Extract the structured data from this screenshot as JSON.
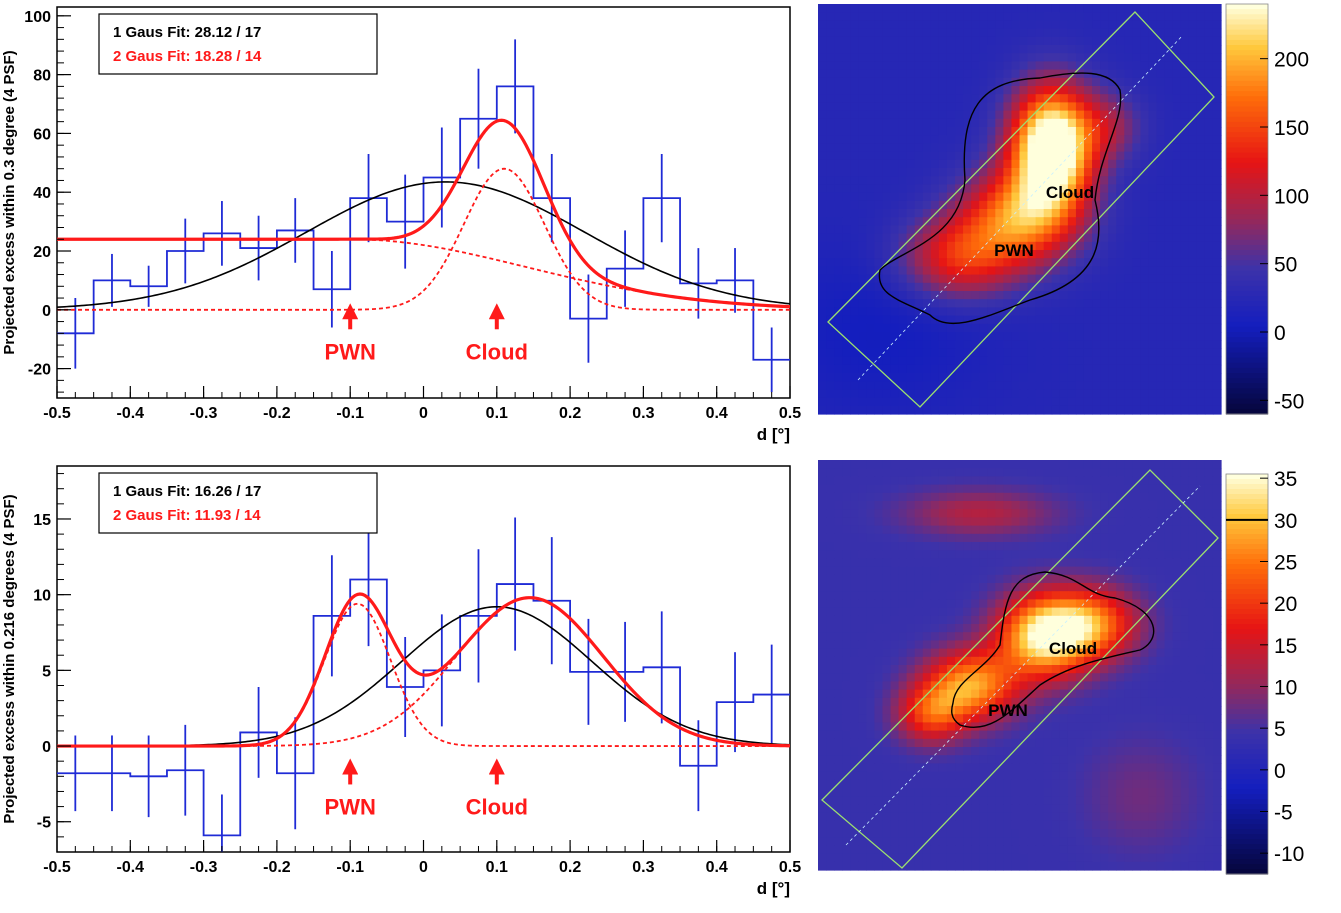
{
  "colors": {
    "data": "#1f2bd6",
    "one_gaus": "#000000",
    "two_gaus": "#ff1a1a",
    "frame": "#000000",
    "box": "#9ce070"
  },
  "chart_data": [
    {
      "type": "line",
      "panel": "top-left",
      "xlabel": "d [°]",
      "ylabel": "Projected excess within 0.3 degree (4 PSF)",
      "xlim": [
        -0.5,
        0.5
      ],
      "ylim": [
        -30,
        103
      ],
      "xticks": [
        -0.5,
        -0.4,
        -0.3,
        -0.2,
        -0.1,
        0,
        0.1,
        0.2,
        0.3,
        0.4,
        0.5
      ],
      "yticks": [
        -20,
        0,
        20,
        40,
        60,
        80,
        100
      ],
      "legend": {
        "placement": "top-left",
        "entries": [
          {
            "text": "1 Gaus Fit: 28.12 / 17",
            "color": "#000000"
          },
          {
            "text": "2 Gaus Fit: 18.28 / 14",
            "color": "#ff1a1a"
          }
        ]
      },
      "annotations": [
        {
          "text": "PWN",
          "x": -0.1,
          "color": "#ff1a1a"
        },
        {
          "text": "Cloud",
          "x": 0.1,
          "color": "#ff1a1a"
        }
      ],
      "histogram": {
        "name": "data",
        "bin_edges": [
          -0.5,
          -0.45,
          -0.4,
          -0.35,
          -0.3,
          -0.25,
          -0.2,
          -0.15,
          -0.1,
          -0.05,
          0,
          0.05,
          0.1,
          0.15,
          0.2,
          0.25,
          0.3,
          0.35,
          0.4,
          0.45,
          0.5
        ],
        "values": [
          -8,
          10,
          8,
          20,
          26,
          21,
          27,
          7,
          38,
          30,
          45,
          65,
          76,
          38,
          -3,
          14,
          38,
          9,
          10,
          -17
        ],
        "errors": [
          12,
          9,
          7,
          11,
          11,
          11,
          11,
          13,
          15,
          16,
          17,
          17,
          16,
          15,
          15,
          13,
          15,
          12,
          11,
          11
        ]
      },
      "series": [
        {
          "name": "1 Gaus Fit",
          "kind": "gauss1",
          "amp": 43.5,
          "mu": 0.03,
          "sigma": 0.19
        },
        {
          "name": "2 Gaus Fit",
          "kind": "gauss2",
          "g1": {
            "amp": 24,
            "mu": -0.1,
            "sigma": 0.24,
            "halfRight": true
          },
          "g2": {
            "amp": 48,
            "mu": 0.11,
            "sigma": 0.055
          }
        }
      ]
    },
    {
      "type": "line",
      "panel": "bottom-left",
      "xlabel": "d [°]",
      "ylabel": "Projected excess within 0.216 degrees (4 PSF)",
      "xlim": [
        -0.5,
        0.5
      ],
      "ylim": [
        -7,
        18.5
      ],
      "xticks": [
        -0.5,
        -0.4,
        -0.3,
        -0.2,
        -0.1,
        0,
        0.1,
        0.2,
        0.3,
        0.4,
        0.5
      ],
      "yticks": [
        -5,
        0,
        5,
        10,
        15
      ],
      "legend": {
        "placement": "top-left",
        "entries": [
          {
            "text": "1 Gaus Fit: 16.26 / 17",
            "color": "#000000"
          },
          {
            "text": "2 Gaus Fit: 11.93 / 14",
            "color": "#ff1a1a"
          }
        ]
      },
      "annotations": [
        {
          "text": "PWN",
          "x": -0.1,
          "color": "#ff1a1a"
        },
        {
          "text": "Cloud",
          "x": 0.1,
          "color": "#ff1a1a"
        }
      ],
      "histogram": {
        "name": "data",
        "bin_edges": [
          -0.5,
          -0.45,
          -0.4,
          -0.35,
          -0.3,
          -0.25,
          -0.2,
          -0.15,
          -0.1,
          -0.05,
          0,
          0.05,
          0.1,
          0.15,
          0.2,
          0.25,
          0.3,
          0.35,
          0.4,
          0.45,
          0.5
        ],
        "values": [
          -1.8,
          -1.8,
          -2.0,
          -1.6,
          -5.9,
          0.9,
          -1.8,
          8.6,
          11.0,
          3.9,
          5.0,
          8.6,
          10.7,
          9.6,
          4.9,
          4.9,
          5.2,
          -1.3,
          2.9,
          3.4
        ],
        "errors": [
          2.5,
          2.5,
          2.7,
          3.0,
          2.7,
          3.0,
          3.7,
          4.0,
          4.4,
          3.3,
          3.7,
          4.4,
          4.4,
          4.2,
          3.5,
          3.3,
          3.7,
          3.0,
          3.3,
          3.3
        ]
      },
      "series": [
        {
          "name": "1 Gaus Fit",
          "kind": "gauss1",
          "amp": 9.2,
          "mu": 0.1,
          "sigma": 0.13
        },
        {
          "name": "2 Gaus Fit",
          "kind": "gauss2",
          "g1": {
            "amp": 9.4,
            "mu": -0.09,
            "sigma": 0.045,
            "halfRight": false
          },
          "g2": {
            "amp": 9.8,
            "mu": 0.145,
            "sigma": 0.1
          }
        }
      ]
    },
    {
      "type": "heatmap",
      "panel": "top-right",
      "colorbar": {
        "ticks": [
          200,
          150,
          100,
          50,
          0,
          -50
        ],
        "range": [
          -60,
          240
        ]
      },
      "labels": [
        {
          "text": "Cloud"
        },
        {
          "text": "PWN"
        }
      ],
      "blobs": [
        {
          "u": 0.58,
          "v": 0.35,
          "amp": 270,
          "sx": 0.07,
          "sy": 0.1
        },
        {
          "u": 0.5,
          "v": 0.52,
          "amp": 150,
          "sx": 0.1,
          "sy": 0.08
        },
        {
          "u": 0.35,
          "v": 0.62,
          "amp": 110,
          "sx": 0.1,
          "sy": 0.07
        },
        {
          "u": 0.72,
          "v": 0.3,
          "amp": 55,
          "sx": 0.06,
          "sy": 0.06
        },
        {
          "u": 0.15,
          "v": 0.8,
          "amp": -20,
          "sx": 0.2,
          "sy": 0.15
        }
      ],
      "base": 25
    },
    {
      "type": "heatmap",
      "panel": "bottom-right",
      "colorbar": {
        "ticks": [
          35,
          30,
          25,
          20,
          15,
          10,
          5,
          0,
          -5,
          -10
        ],
        "range": [
          -12.5,
          35.5
        ]
      },
      "colorbar_contour_level": 30,
      "labels": [
        {
          "text": "Cloud"
        },
        {
          "text": "PWN"
        }
      ],
      "blobs": [
        {
          "u": 0.56,
          "v": 0.43,
          "amp": 30,
          "sx": 0.08,
          "sy": 0.07
        },
        {
          "u": 0.38,
          "v": 0.55,
          "amp": 24,
          "sx": 0.08,
          "sy": 0.06
        },
        {
          "u": 0.68,
          "v": 0.4,
          "amp": 20,
          "sx": 0.08,
          "sy": 0.06
        },
        {
          "u": 0.28,
          "v": 0.62,
          "amp": 16,
          "sx": 0.06,
          "sy": 0.05
        },
        {
          "u": 0.4,
          "v": 0.13,
          "amp": 9,
          "sx": 0.13,
          "sy": 0.04
        },
        {
          "u": 0.8,
          "v": 0.82,
          "amp": 4,
          "sx": 0.1,
          "sy": 0.1
        }
      ],
      "base": 4
    }
  ]
}
